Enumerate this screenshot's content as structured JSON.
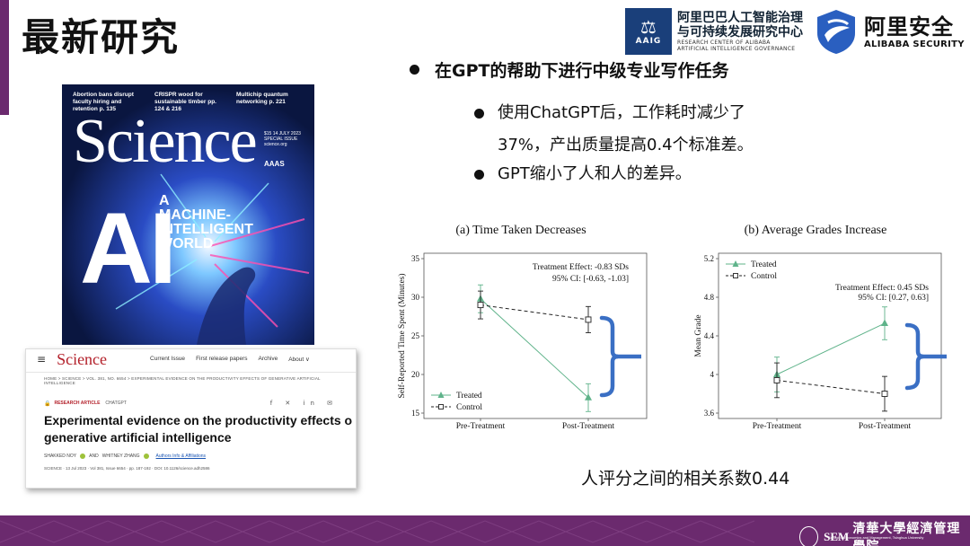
{
  "slide": {
    "title": "最新研究"
  },
  "logos": {
    "aaig_glyph": "⚖",
    "aaig_abbr": "AAIG",
    "aaig_cn1": "阿里巴巴人工智能治理",
    "aaig_cn2": "与可持续发展研究中心",
    "aaig_en1": "RESEARCH CENTER OF ALIBABA",
    "aaig_en2": "ARTIFICIAL INTELLIGENCE GOVERNANCE",
    "ali_cn": "阿里安全",
    "ali_en": "ALIBABA SECURITY"
  },
  "cover": {
    "headlines": [
      "Abortion bans disrupt faculty hiring and retention p. 135",
      "CRISPR wood for sustainable timber pp. 124 & 216",
      "Multichip quantum networking p. 221"
    ],
    "masthead": "Science",
    "issue": "$15 14 JULY 2023 SPECIAL ISSUE science.org",
    "aaas": "AAAS",
    "big_text": "AI",
    "tagline": "A MACHINE-INTELLIGENT WORLD"
  },
  "webpage": {
    "menu_icon": "≡",
    "logo": "Science",
    "nav": [
      "Current Issue",
      "First release papers",
      "Archive",
      "About ∨"
    ],
    "breadcrumb": "HOME > SCIENCE > VOL. 381, NO. 6654 > EXPERIMENTAL EVIDENCE ON THE PRODUCTIVITY EFFECTS OF GENERATIVE ARTIFICIAL INTELLIGENCE",
    "lock_icon": "🔒",
    "article_type": "RESEARCH ARTICLE",
    "article_section": "CHATGPT",
    "share_icons": "f ✕ in ✉",
    "title_line1": "Experimental evidence on the productivity effects o",
    "title_line2": "generative artificial intelligence",
    "author1": "SHAKKED NOY",
    "and": "AND",
    "author2": "WHITNEY ZHANG",
    "affiliations_link": "Authors Info & Affiliations",
    "meta": "SCIENCE · 13 Jul 2023 · Vol 381, Issue 6654 · pp. 187-192 · DOI: 10.1126/science.adh2586"
  },
  "bullets": {
    "main": "在GPT的帮助下进行中级专业写作任务",
    "sub1_line1": "使用ChatGPT后，工作耗时减少了",
    "sub1_line2": "37%，产出质量提高0.4个标准差。",
    "sub2": "GPT缩小了人和人的差异。"
  },
  "caption": "人评分之间的相关系数0.44",
  "footer": {
    "sem": "SEM",
    "cn": "清華大學經濟管理學院",
    "en": "School of Economics and Management, Tsinghua University"
  },
  "colors": {
    "purple": "#6b2a6e",
    "treated_green": "#5fb38a",
    "control_gray": "#222222",
    "bracket_blue": "#3a6fc4"
  },
  "chart_data": [
    {
      "type": "line",
      "title": "(a) Time Taken Decreases",
      "xlabel": "",
      "ylabel": "Self-Reported Time Spent (Minutes)",
      "categories": [
        "Pre-Treatment",
        "Post-Treatment"
      ],
      "ylim": [
        15,
        35
      ],
      "yticks": [
        15,
        20,
        25,
        30,
        35
      ],
      "series": [
        {
          "name": "Treated",
          "values": [
            29.8,
            17.0
          ],
          "ci": [
            [
              28.0,
              31.6
            ],
            [
              15.2,
              18.8
            ]
          ],
          "marker": "triangle",
          "dash": false
        },
        {
          "name": "Control",
          "values": [
            29.0,
            27.1
          ],
          "ci": [
            [
              27.2,
              30.8
            ],
            [
              25.4,
              28.8
            ]
          ],
          "marker": "square",
          "dash": true
        }
      ],
      "annotation_line1": "Treatment Effect:    -0.83 SDs",
      "annotation_line2": "95% CI:  [-0.63, -1.03]",
      "legend": "bottom-left"
    },
    {
      "type": "line",
      "title": "(b) Average Grades Increase",
      "xlabel": "",
      "ylabel": "Mean Grade",
      "categories": [
        "Pre-Treatment",
        "Post-Treatment"
      ],
      "ylim": [
        3.6,
        5.2
      ],
      "yticks": [
        3.6,
        4,
        4.4,
        4.8,
        5.2
      ],
      "series": [
        {
          "name": "Treated",
          "values": [
            4.0,
            4.53
          ],
          "ci": [
            [
              3.82,
              4.18
            ],
            [
              4.36,
              4.7
            ]
          ],
          "marker": "triangle",
          "dash": false
        },
        {
          "name": "Control",
          "values": [
            3.94,
            3.8
          ],
          "ci": [
            [
              3.76,
              4.12
            ],
            [
              3.62,
              3.98
            ]
          ],
          "marker": "square",
          "dash": true
        }
      ],
      "annotation_line1": "Treatment Effect:    0.45 SDs",
      "annotation_line2": "95% CI:  [0.27, 0.63]",
      "legend": "top-left"
    }
  ]
}
